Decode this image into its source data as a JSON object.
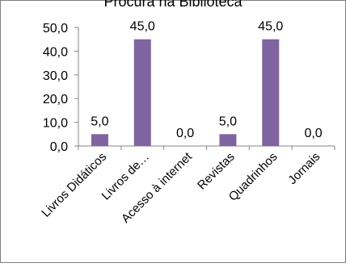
{
  "chart_data": {
    "type": "bar",
    "title": "Procura na Biblioteca",
    "categories": [
      "Livros Didáticos",
      "Livros de…",
      "Acesso à internet",
      "Revistas",
      "Quadrinhos",
      "Jornais"
    ],
    "values": [
      5.0,
      45.0,
      0.0,
      5.0,
      45.0,
      0.0
    ],
    "data_labels": [
      "5,0",
      "45,0",
      "0,0",
      "5,0",
      "45,0",
      "0,0"
    ],
    "ylim": [
      0,
      50
    ],
    "yticks": [
      "0,0",
      "10,0",
      "20,0",
      "30,0",
      "40,0",
      "50,0"
    ],
    "xlabel": "",
    "ylabel": "",
    "bar_color": "#8064a2",
    "grid": false,
    "legend": "none"
  }
}
